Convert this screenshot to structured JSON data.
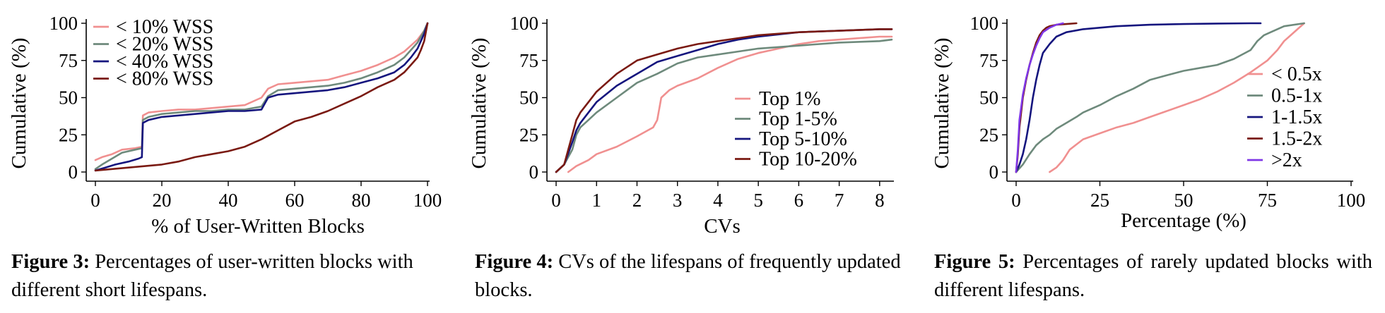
{
  "colors": {
    "c1": "#f09090",
    "c2": "#6e8a7c",
    "c3": "#15157e",
    "c4": "#7a1a12",
    "c5": "#7f37e6"
  },
  "chart_data": [
    {
      "type": "line",
      "xlabel": "% of User-Written Blocks",
      "ylabel": "Cumulative (%)",
      "xlim": [
        0,
        100
      ],
      "ylim": [
        0,
        100
      ],
      "xticks": [
        0,
        20,
        40,
        60,
        80,
        100
      ],
      "yticks": [
        0,
        25,
        50,
        75,
        100
      ],
      "legend": "top-left",
      "series": [
        {
          "name": "< 10% WSS",
          "color": "#f09090",
          "x": [
            0,
            2,
            5,
            8,
            12,
            14,
            14.3,
            16,
            20,
            25,
            30,
            35,
            40,
            45,
            50,
            52,
            55,
            60,
            65,
            70,
            75,
            80,
            85,
            90,
            93,
            95,
            97,
            98,
            99,
            100
          ],
          "y": [
            8,
            10,
            12,
            15,
            16,
            17,
            38,
            40,
            41,
            42,
            42,
            43,
            44,
            45,
            50,
            56,
            59,
            60,
            61,
            62,
            65,
            68,
            72,
            77,
            81,
            85,
            89,
            92,
            95,
            100
          ]
        },
        {
          "name": "< 20% WSS",
          "color": "#6e8a7c",
          "x": [
            0,
            2,
            5,
            8,
            12,
            14,
            14.3,
            16,
            20,
            25,
            30,
            35,
            40,
            45,
            50,
            52,
            55,
            60,
            65,
            70,
            75,
            80,
            85,
            90,
            93,
            95,
            97,
            98,
            99,
            100
          ],
          "y": [
            2,
            5,
            9,
            13,
            15,
            16,
            35,
            37,
            39,
            40,
            41,
            41,
            42,
            42,
            44,
            51,
            55,
            56,
            57,
            58,
            60,
            63,
            67,
            72,
            77,
            82,
            87,
            91,
            95,
            100
          ]
        },
        {
          "name": "< 40% WSS",
          "color": "#15157e",
          "x": [
            0,
            3,
            6,
            10,
            13,
            14,
            14.3,
            16,
            20,
            25,
            30,
            35,
            40,
            45,
            50,
            52,
            55,
            60,
            65,
            70,
            75,
            80,
            85,
            90,
            93,
            95,
            97,
            98,
            99,
            100
          ],
          "y": [
            1,
            3,
            5,
            7,
            9,
            10,
            33,
            35,
            37,
            38,
            39,
            40,
            41,
            41,
            42,
            50,
            52,
            53,
            54,
            55,
            57,
            60,
            63,
            67,
            72,
            77,
            83,
            88,
            93,
            100
          ]
        },
        {
          "name": "< 80% WSS",
          "color": "#7a1a12",
          "x": [
            0,
            5,
            10,
            15,
            20,
            25,
            30,
            35,
            40,
            45,
            50,
            55,
            60,
            65,
            70,
            75,
            80,
            85,
            90,
            93,
            95,
            97,
            98,
            99,
            100
          ],
          "y": [
            1,
            2,
            3,
            4,
            5,
            7,
            10,
            12,
            14,
            17,
            22,
            28,
            34,
            37,
            41,
            46,
            51,
            57,
            62,
            67,
            72,
            77,
            82,
            88,
            100
          ]
        }
      ]
    },
    {
      "type": "line",
      "xlabel": "CVs",
      "ylabel": "Cumulative (%)",
      "xlim": [
        0,
        8.3
      ],
      "ylim": [
        0,
        100
      ],
      "xticks": [
        0,
        1,
        2,
        3,
        4,
        5,
        6,
        7,
        8
      ],
      "yticks": [
        0,
        25,
        50,
        75,
        100
      ],
      "legend": "lower-right",
      "series": [
        {
          "name": "Top 1%",
          "color": "#f09090",
          "x": [
            0.3,
            0.5,
            0.8,
            1.0,
            1.5,
            2.0,
            2.4,
            2.5,
            2.6,
            2.8,
            3.0,
            3.5,
            4.0,
            4.5,
            5.0,
            5.5,
            6.0,
            6.5,
            7.0,
            7.5,
            8.0,
            8.3
          ],
          "y": [
            0,
            4,
            8,
            12,
            17,
            24,
            30,
            35,
            50,
            55,
            58,
            63,
            70,
            76,
            80,
            83,
            86,
            88,
            89,
            90,
            91,
            91
          ]
        },
        {
          "name": "Top 1-5%",
          "color": "#6e8a7c",
          "x": [
            0,
            0.2,
            0.4,
            0.5,
            0.6,
            0.8,
            1.0,
            1.5,
            2.0,
            2.5,
            3.0,
            3.5,
            4.0,
            4.5,
            5.0,
            6.0,
            7.0,
            8.0,
            8.3
          ],
          "y": [
            0,
            5,
            15,
            25,
            30,
            35,
            40,
            50,
            60,
            66,
            73,
            77,
            79,
            81,
            83,
            85,
            87,
            88,
            89
          ]
        },
        {
          "name": "Top 5-10%",
          "color": "#15157e",
          "x": [
            0,
            0.2,
            0.4,
            0.5,
            0.6,
            0.8,
            1.0,
            1.5,
            2.0,
            2.5,
            3.0,
            3.5,
            4.0,
            4.5,
            5.0,
            6.0,
            7.0,
            8.0,
            8.3
          ],
          "y": [
            0,
            5,
            20,
            28,
            33,
            40,
            47,
            58,
            66,
            74,
            78,
            82,
            86,
            89,
            91,
            94,
            95,
            96,
            96
          ]
        },
        {
          "name": "Top 10-20%",
          "color": "#7a1a12",
          "x": [
            0,
            0.2,
            0.4,
            0.5,
            0.6,
            0.8,
            1.0,
            1.5,
            2.0,
            2.5,
            3.0,
            3.5,
            4.0,
            4.5,
            5.0,
            6.0,
            7.0,
            8.0,
            8.3
          ],
          "y": [
            0,
            5,
            25,
            35,
            40,
            47,
            54,
            66,
            75,
            79,
            83,
            86,
            88,
            90,
            92,
            94,
            95,
            96,
            96
          ]
        }
      ]
    },
    {
      "type": "line",
      "xlabel": "Percentage (%)",
      "ylabel": "Cumulative (%)",
      "xlim": [
        0,
        100
      ],
      "ylim": [
        0,
        100
      ],
      "xticks": [
        0,
        25,
        50,
        75,
        100
      ],
      "yticks": [
        0,
        25,
        50,
        75,
        100
      ],
      "legend": "right",
      "series": [
        {
          "name": "< 0.5x",
          "color": "#f09090",
          "x": [
            10,
            12,
            14,
            16,
            20,
            25,
            30,
            35,
            40,
            45,
            50,
            55,
            60,
            65,
            70,
            75,
            78,
            80,
            82,
            84,
            86
          ],
          "y": [
            0,
            3,
            8,
            15,
            22,
            26,
            30,
            33,
            37,
            41,
            45,
            49,
            54,
            60,
            67,
            75,
            82,
            88,
            92,
            96,
            100
          ]
        },
        {
          "name": "0.5-1x",
          "color": "#6e8a7c",
          "x": [
            0,
            2,
            4,
            6,
            8,
            10,
            12,
            15,
            18,
            20,
            25,
            30,
            35,
            40,
            45,
            50,
            55,
            60,
            65,
            70,
            72,
            74,
            76,
            78,
            80,
            86
          ],
          "y": [
            0,
            5,
            12,
            18,
            22,
            25,
            29,
            33,
            37,
            40,
            45,
            51,
            56,
            62,
            65,
            68,
            70,
            72,
            76,
            82,
            88,
            92,
            94,
            96,
            98,
            100
          ]
        },
        {
          "name": "1-1.5x",
          "color": "#15157e",
          "x": [
            0,
            1,
            2,
            3,
            4,
            5,
            6,
            7,
            8,
            10,
            12,
            15,
            20,
            30,
            40,
            50,
            60,
            70,
            73
          ],
          "y": [
            0,
            5,
            12,
            22,
            35,
            50,
            62,
            72,
            80,
            86,
            91,
            94,
            96,
            98,
            99,
            99.5,
            99.8,
            100,
            100
          ]
        },
        {
          "name": "1.5-2x",
          "color": "#7a1a12",
          "x": [
            0,
            0.5,
            1,
            2,
            3,
            4,
            5,
            6,
            7,
            8,
            9,
            10,
            12,
            15,
            18
          ],
          "y": [
            0,
            12,
            30,
            50,
            62,
            72,
            80,
            87,
            92,
            95,
            97,
            98,
            99,
            99.5,
            100
          ]
        },
        {
          "name": ">2x",
          "color": "#7f37e6",
          "x": [
            0,
            0.5,
            1,
            2,
            3,
            4,
            5,
            6,
            7,
            8,
            10,
            12,
            14
          ],
          "y": [
            0,
            15,
            35,
            52,
            63,
            72,
            79,
            85,
            90,
            94,
            97,
            99,
            100
          ]
        }
      ]
    }
  ],
  "captions": [
    {
      "number": "Figure 3:",
      "text": "Percentages of user-written blocks with different short lifespans."
    },
    {
      "number": "Figure 4:",
      "text": "CVs of the lifespans of frequently updated blocks."
    },
    {
      "number": "Figure 5:",
      "text": "Percentages of rarely updated blocks with different lifespans."
    }
  ]
}
